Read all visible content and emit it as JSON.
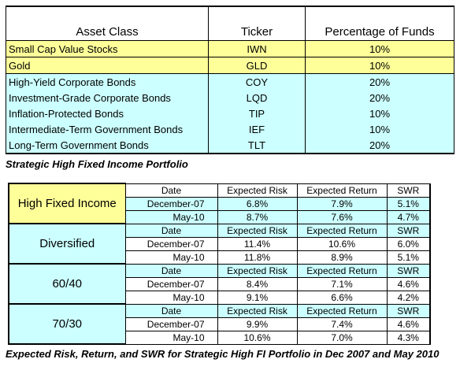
{
  "table1": {
    "columns": [
      "Asset Class",
      "Ticker",
      "Percentage of Funds"
    ],
    "rows": [
      [
        "Small Cap Value Stocks",
        "IWN",
        "10%"
      ],
      [
        "Gold",
        "GLD",
        "10%"
      ],
      [
        "High-Yield Corporate Bonds",
        "COY",
        "20%"
      ],
      [
        "Investment-Grade Corporate Bonds",
        "LQD",
        "20%"
      ],
      [
        "Inflation-Protected Bonds",
        "TIP",
        "10%"
      ],
      [
        "Intermediate-Term Government Bonds",
        "IEF",
        "10%"
      ],
      [
        "Long-Term Government Bonds",
        "TLT",
        "20%"
      ]
    ]
  },
  "caption1": "Strategic High Fixed Income Portfolio",
  "table2": {
    "columns": [
      "Date",
      "Expected Risk",
      "Expected Return",
      "SWR"
    ],
    "groups": [
      {
        "name": "High Fixed Income",
        "rows": [
          [
            "December-07",
            "6.8%",
            "7.9%",
            "5.1%"
          ],
          [
            "May-10",
            "8.7%",
            "7.6%",
            "4.7%"
          ]
        ]
      },
      {
        "name": "Diversified",
        "rows": [
          [
            "December-07",
            "11.4%",
            "10.6%",
            "6.0%"
          ],
          [
            "May-10",
            "11.8%",
            "8.9%",
            "5.1%"
          ]
        ]
      },
      {
        "name": "60/40",
        "rows": [
          [
            "December-07",
            "8.4%",
            "7.1%",
            "4.6%"
          ],
          [
            "May-10",
            "9.1%",
            "6.6%",
            "4.2%"
          ]
        ]
      },
      {
        "name": "70/30",
        "rows": [
          [
            "December-07",
            "9.9%",
            "7.4%",
            "4.6%"
          ],
          [
            "May-10",
            "10.6%",
            "7.0%",
            "4.3%"
          ]
        ]
      }
    ]
  },
  "caption2": "Expected Risk, Return, and SWR for Strategic High FI Portfolio in Dec 2007 and May 2010"
}
